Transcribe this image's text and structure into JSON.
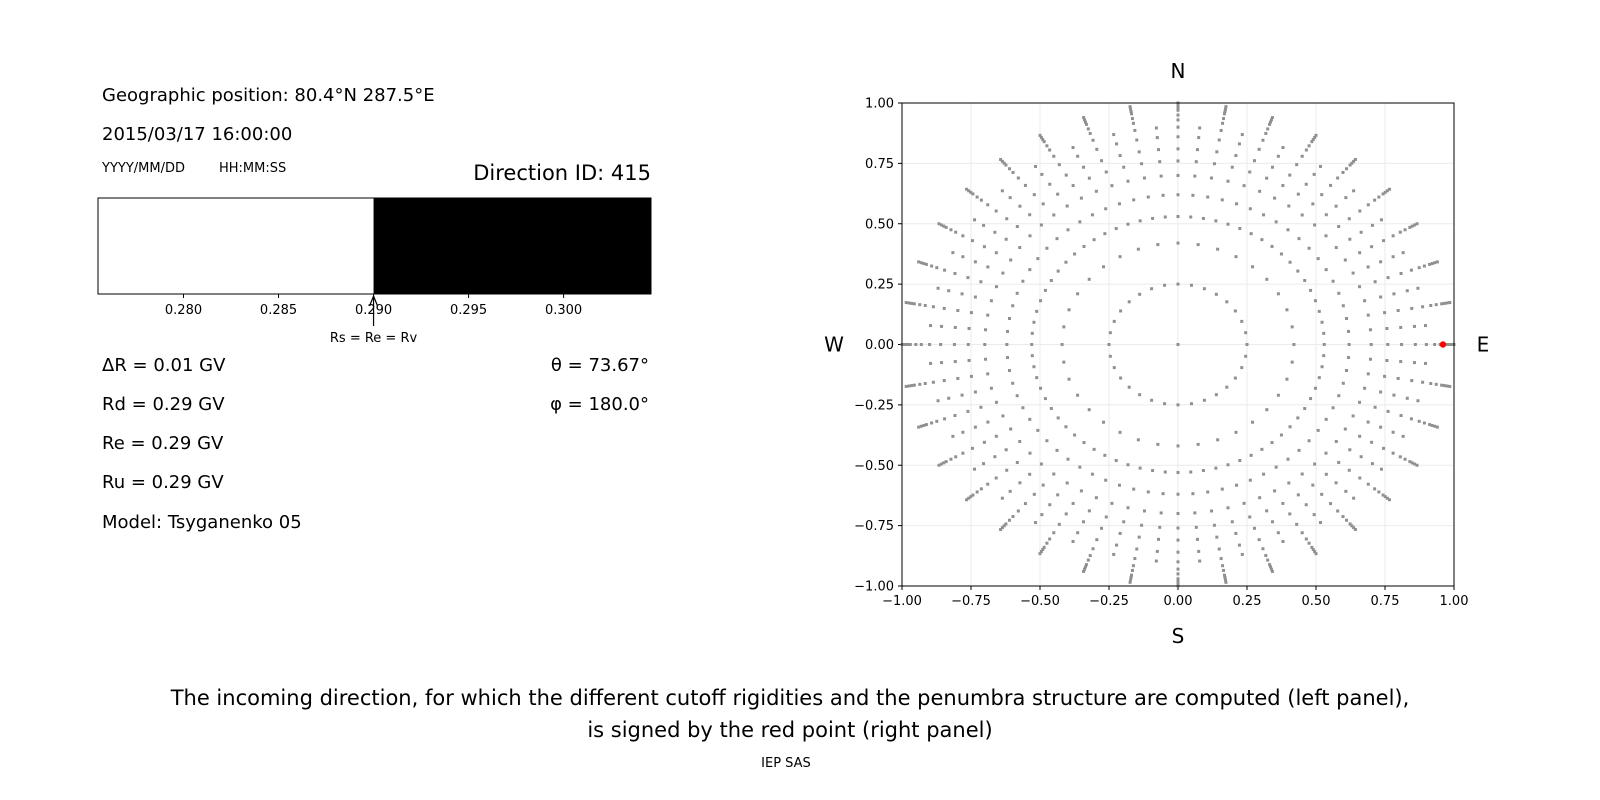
{
  "left_panel": {
    "geo_position": "Geographic position: 80.4°N 287.5°E",
    "datetime": "2015/03/17 16:00:00",
    "date_format": "YYYY/MM/DD",
    "time_format": "HH:MM:SS",
    "direction_id": "Direction ID: 415",
    "delta_r": "ΔR = 0.01 GV",
    "rd": "Rd = 0.29 GV",
    "re": "Re = 0.29 GV",
    "ru": "Ru = 0.29 GV",
    "model": "Model: Tsyganenko 05",
    "theta": "θ = 73.67°",
    "phi": "φ = 180.0°",
    "penumbra_bar": {
      "xlim": [
        0.2755,
        0.3046
      ],
      "ticks": [
        "0.280",
        "0.285",
        "0.290",
        "0.295",
        "0.300"
      ],
      "allowed_color": "#000000",
      "forbidden_color": "#ffffff",
      "transition": 0.29,
      "arrow_label": "Rs = Re = Rv"
    }
  },
  "chart_data": {
    "type": "scatter",
    "xlim": [
      -1,
      1
    ],
    "ylim": [
      -1,
      1
    ],
    "grid": true,
    "x_ticks": [
      "−1.00",
      "−0.75",
      "−0.50",
      "−0.25",
      "0.00",
      "0.25",
      "0.50",
      "0.75",
      "1.00"
    ],
    "y_ticks": [
      "1.00",
      "0.75",
      "0.50",
      "0.25",
      "0.00",
      "−0.25",
      "−0.50",
      "−0.75",
      "−1.00"
    ],
    "compass": {
      "north": "N",
      "south": "S",
      "west": "W",
      "east": "E"
    },
    "grid_points": {
      "color": "#909090",
      "center": [
        0,
        0
      ],
      "inner_ring_radius": 0.25,
      "inner_ring_count": 32,
      "spoke_angles_step_deg": 10,
      "spoke_radii": [
        0.42,
        0.53,
        0.62,
        0.7,
        0.76,
        0.81,
        0.86,
        0.9,
        0.93,
        0.95,
        0.97,
        0.98,
        0.99,
        1.0
      ]
    },
    "selected_point": {
      "x": 0.96,
      "y": 0.0,
      "color": "#ff0000"
    }
  },
  "caption": {
    "line1": "The incoming direction, for which the different cutoff rigidities and the penumbra structure are computed (left panel),",
    "line2": "is signed by the red point (right panel)"
  },
  "footer": "IEP SAS"
}
